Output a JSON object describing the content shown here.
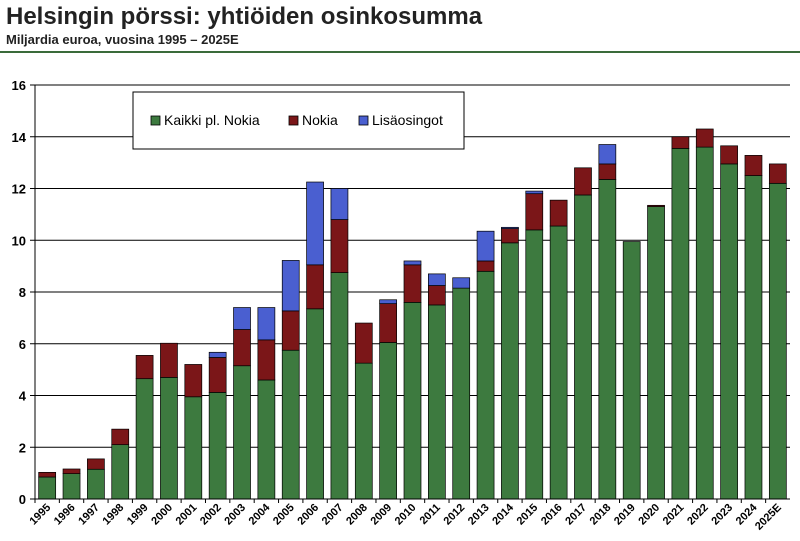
{
  "chart_data": {
    "type": "bar",
    "stacked": true,
    "title": "Helsingin pörssi: yhtiöiden osinkosumma",
    "subtitle": "Miljardia euroa, vuosina 1995 – 2025E",
    "categories": [
      "1995",
      "1996",
      "1997",
      "1998",
      "1999",
      "2000",
      "2001",
      "2002",
      "2003",
      "2004",
      "2005",
      "2006",
      "2007",
      "2008",
      "2009",
      "2010",
      "2011",
      "2012",
      "2013",
      "2014",
      "2015",
      "2016",
      "2017",
      "2018",
      "2019",
      "2020",
      "2021",
      "2022",
      "2023",
      "2024",
      "2025E"
    ],
    "series": [
      {
        "name": "Kaikki pl. Nokia",
        "color": "#3d7a3f",
        "values": [
          0.85,
          0.98,
          1.15,
          2.1,
          4.65,
          4.7,
          3.95,
          4.12,
          5.15,
          4.6,
          5.75,
          7.35,
          8.75,
          5.25,
          6.05,
          7.6,
          7.5,
          8.15,
          8.8,
          9.9,
          10.4,
          10.55,
          11.75,
          12.35,
          9.95,
          11.3,
          13.55,
          13.6,
          12.95,
          12.5,
          12.2
        ]
      },
      {
        "name": "Nokia",
        "color": "#7b1618",
        "values": [
          0.18,
          0.18,
          0.4,
          0.6,
          0.9,
          1.32,
          1.25,
          1.35,
          1.4,
          1.55,
          1.52,
          1.7,
          2.05,
          1.55,
          1.5,
          1.45,
          0.75,
          0.0,
          0.4,
          0.55,
          1.4,
          1.0,
          1.05,
          0.6,
          0.0,
          0.05,
          0.45,
          0.7,
          0.7,
          0.78,
          0.75
        ]
      },
      {
        "name": "Lisäosingot",
        "color": "#4a5fd0",
        "values": [
          0,
          0,
          0,
          0,
          0,
          0,
          0,
          0.2,
          0.85,
          1.25,
          1.95,
          3.2,
          1.2,
          0,
          0.15,
          0.15,
          0.45,
          0.4,
          1.15,
          0.05,
          0.1,
          0,
          0,
          0.75,
          0,
          0,
          0,
          0,
          0,
          0,
          0
        ]
      }
    ],
    "ylim": [
      0,
      16
    ],
    "yticks": [
      "0",
      "2",
      "4",
      "6",
      "8",
      "10",
      "12",
      "14",
      "16"
    ],
    "grid": true,
    "legend_position": "top-left"
  }
}
